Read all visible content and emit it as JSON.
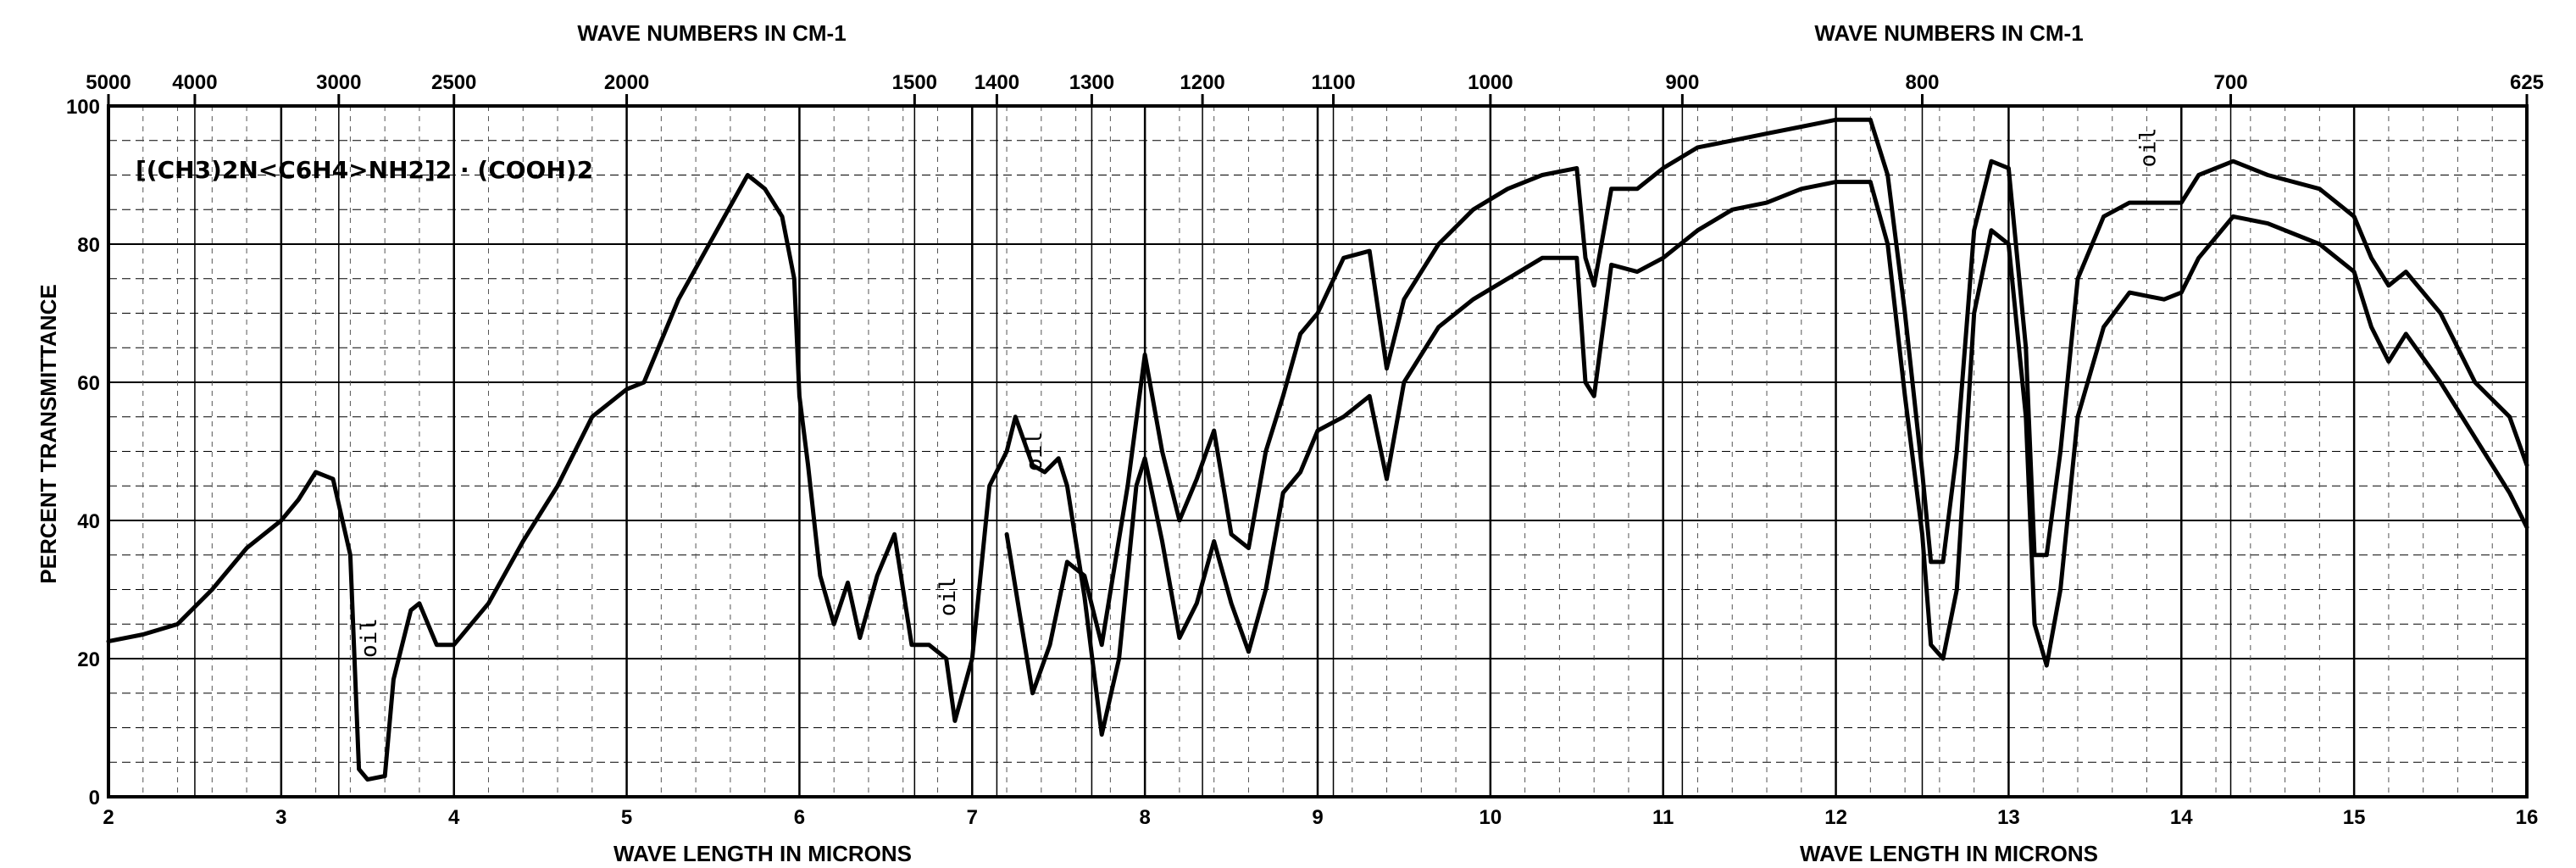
{
  "chart_data": {
    "type": "line",
    "formula_label": "[(CH3)2N<C6H4>NH2]2 · (COOH)2",
    "top_axis_title_left": "WAVE NUMBERS IN CM-1",
    "top_axis_title_right": "WAVE NUMBERS IN CM-1",
    "bottom_axis_title_left": "WAVE LENGTH IN MICRONS",
    "bottom_axis_title_right": "WAVE LENGTH IN MICRONS",
    "ylabel": "PERCENT TRANSMITTANCE",
    "xlim": [
      2,
      16
    ],
    "ylim": [
      0,
      100
    ],
    "x_ticks": [
      "2",
      "3",
      "4",
      "5",
      "6",
      "7",
      "8",
      "9",
      "10",
      "11",
      "12",
      "13",
      "14",
      "15",
      "16"
    ],
    "y_ticks": [
      "0",
      "20",
      "40",
      "60",
      "80",
      "100"
    ],
    "top_ticks": [
      {
        "wavenumber": 5000,
        "label": "5000"
      },
      {
        "wavenumber": 4000,
        "label": "4000"
      },
      {
        "wavenumber": 3000,
        "label": "3000"
      },
      {
        "wavenumber": 2500,
        "label": "2500"
      },
      {
        "wavenumber": 2000,
        "label": "2000"
      },
      {
        "wavenumber": 1500,
        "label": "1500"
      },
      {
        "wavenumber": 1400,
        "label": "1400"
      },
      {
        "wavenumber": 1300,
        "label": "1300"
      },
      {
        "wavenumber": 1200,
        "label": "1200"
      },
      {
        "wavenumber": 1100,
        "label": "1100"
      },
      {
        "wavenumber": 1000,
        "label": "1000"
      },
      {
        "wavenumber": 900,
        "label": "900"
      },
      {
        "wavenumber": 800,
        "label": "800"
      },
      {
        "wavenumber": 700,
        "label": "700"
      },
      {
        "wavenumber": 625,
        "label": "625"
      }
    ],
    "annotations": [
      {
        "text": "oil",
        "x": 3.55,
        "y": 23
      },
      {
        "text": "oil",
        "x": 6.9,
        "y": 29
      },
      {
        "text": "oil",
        "x": 7.4,
        "y": 50
      },
      {
        "text": "oil",
        "x": 13.85,
        "y": 94
      }
    ],
    "series": [
      {
        "points": [
          [
            2.0,
            22.5
          ],
          [
            2.2,
            23.5
          ],
          [
            2.4,
            25
          ],
          [
            2.6,
            30
          ],
          [
            2.8,
            36
          ],
          [
            3.0,
            40
          ],
          [
            3.1,
            43
          ],
          [
            3.2,
            47
          ],
          [
            3.3,
            46
          ],
          [
            3.4,
            35
          ],
          [
            3.45,
            4
          ],
          [
            3.5,
            2.5
          ],
          [
            3.6,
            3
          ],
          [
            3.65,
            17
          ],
          [
            3.75,
            27
          ],
          [
            3.8,
            28
          ],
          [
            3.9,
            22
          ],
          [
            4.0,
            22
          ],
          [
            4.2,
            28
          ],
          [
            4.4,
            37
          ],
          [
            4.6,
            45
          ],
          [
            4.8,
            55
          ],
          [
            5.0,
            59
          ],
          [
            5.1,
            60
          ],
          [
            5.3,
            72
          ],
          [
            5.5,
            81
          ],
          [
            5.7,
            90
          ],
          [
            5.8,
            88
          ],
          [
            5.9,
            84
          ],
          [
            5.97,
            75
          ],
          [
            6.0,
            58
          ],
          [
            6.05,
            48
          ],
          [
            6.12,
            32
          ],
          [
            6.2,
            25
          ],
          [
            6.28,
            31
          ],
          [
            6.35,
            23
          ],
          [
            6.45,
            32
          ],
          [
            6.55,
            38
          ],
          [
            6.65,
            22
          ],
          [
            6.75,
            22
          ],
          [
            6.85,
            20
          ],
          [
            6.9,
            11
          ],
          [
            7.0,
            20
          ],
          [
            7.1,
            45
          ],
          [
            7.2,
            50
          ],
          [
            7.25,
            55
          ],
          [
            7.35,
            48
          ],
          [
            7.42,
            47
          ],
          [
            7.5,
            49
          ],
          [
            7.55,
            45
          ],
          [
            7.65,
            29
          ],
          [
            7.75,
            9
          ],
          [
            7.85,
            20
          ],
          [
            7.95,
            45
          ],
          [
            8.0,
            49
          ],
          [
            8.1,
            37
          ],
          [
            8.2,
            23
          ],
          [
            8.3,
            28
          ],
          [
            8.4,
            37
          ],
          [
            8.5,
            28
          ],
          [
            8.6,
            21
          ],
          [
            8.7,
            30
          ],
          [
            8.8,
            44
          ],
          [
            8.9,
            47
          ],
          [
            9.0,
            53
          ],
          [
            9.15,
            55
          ],
          [
            9.3,
            58
          ],
          [
            9.4,
            46
          ],
          [
            9.5,
            60
          ],
          [
            9.7,
            68
          ],
          [
            9.9,
            72
          ],
          [
            10.1,
            75
          ],
          [
            10.3,
            78
          ],
          [
            10.5,
            78
          ],
          [
            10.55,
            60
          ],
          [
            10.6,
            58
          ],
          [
            10.7,
            77
          ],
          [
            10.85,
            76
          ],
          [
            11.0,
            78
          ],
          [
            11.2,
            82
          ],
          [
            11.4,
            85
          ],
          [
            11.6,
            86
          ],
          [
            11.8,
            88
          ],
          [
            12.0,
            89
          ],
          [
            12.2,
            89
          ],
          [
            12.3,
            80
          ],
          [
            12.4,
            58
          ],
          [
            12.5,
            38
          ],
          [
            12.55,
            22
          ],
          [
            12.62,
            20
          ],
          [
            12.7,
            30
          ],
          [
            12.8,
            70
          ],
          [
            12.9,
            82
          ],
          [
            13.0,
            80
          ],
          [
            13.1,
            55
          ],
          [
            13.15,
            25
          ],
          [
            13.22,
            19
          ],
          [
            13.3,
            30
          ],
          [
            13.4,
            55
          ],
          [
            13.55,
            68
          ],
          [
            13.7,
            73
          ],
          [
            13.9,
            72
          ],
          [
            14.0,
            73
          ],
          [
            14.1,
            78
          ],
          [
            14.3,
            84
          ],
          [
            14.5,
            83
          ],
          [
            14.8,
            80
          ],
          [
            15.0,
            76
          ],
          [
            15.1,
            68
          ],
          [
            15.2,
            63
          ],
          [
            15.3,
            67
          ],
          [
            15.5,
            60
          ],
          [
            15.7,
            52
          ],
          [
            15.9,
            44
          ],
          [
            16.0,
            39
          ]
        ]
      },
      {
        "points": [
          [
            7.2,
            38
          ],
          [
            7.35,
            15
          ],
          [
            7.45,
            22
          ],
          [
            7.55,
            34
          ],
          [
            7.65,
            32
          ],
          [
            7.75,
            22
          ],
          [
            7.9,
            45
          ],
          [
            8.0,
            64
          ],
          [
            8.1,
            50
          ],
          [
            8.2,
            40
          ],
          [
            8.3,
            46
          ],
          [
            8.4,
            53
          ],
          [
            8.5,
            38
          ],
          [
            8.6,
            36
          ],
          [
            8.7,
            50
          ],
          [
            8.8,
            58
          ],
          [
            8.9,
            67
          ],
          [
            9.0,
            70
          ],
          [
            9.15,
            78
          ],
          [
            9.3,
            79
          ],
          [
            9.4,
            62
          ],
          [
            9.5,
            72
          ],
          [
            9.7,
            80
          ],
          [
            9.9,
            85
          ],
          [
            10.1,
            88
          ],
          [
            10.3,
            90
          ],
          [
            10.5,
            91
          ],
          [
            10.55,
            78
          ],
          [
            10.6,
            74
          ],
          [
            10.7,
            88
          ],
          [
            10.85,
            88
          ],
          [
            11.0,
            91
          ],
          [
            11.2,
            94
          ],
          [
            11.4,
            95
          ],
          [
            11.6,
            96
          ],
          [
            11.8,
            97
          ],
          [
            12.0,
            98
          ],
          [
            12.2,
            98
          ],
          [
            12.3,
            90
          ],
          [
            12.4,
            70
          ],
          [
            12.5,
            47
          ],
          [
            12.55,
            34
          ],
          [
            12.62,
            34
          ],
          [
            12.7,
            50
          ],
          [
            12.8,
            82
          ],
          [
            12.9,
            92
          ],
          [
            13.0,
            91
          ],
          [
            13.1,
            65
          ],
          [
            13.15,
            35
          ],
          [
            13.22,
            35
          ],
          [
            13.3,
            50
          ],
          [
            13.4,
            75
          ],
          [
            13.55,
            84
          ],
          [
            13.7,
            86
          ],
          [
            13.9,
            86
          ],
          [
            14.0,
            86
          ],
          [
            14.1,
            90
          ],
          [
            14.3,
            92
          ],
          [
            14.5,
            90
          ],
          [
            14.8,
            88
          ],
          [
            15.0,
            84
          ],
          [
            15.1,
            78
          ],
          [
            15.2,
            74
          ],
          [
            15.3,
            76
          ],
          [
            15.5,
            70
          ],
          [
            15.7,
            60
          ],
          [
            15.9,
            55
          ],
          [
            16.0,
            48
          ]
        ]
      }
    ]
  }
}
